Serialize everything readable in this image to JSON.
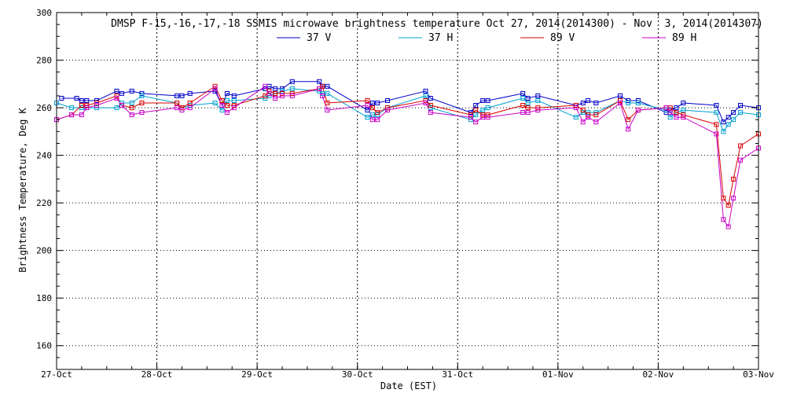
{
  "chart_data": {
    "type": "line",
    "title": "DMSP F-15,-16,-17,-18 SSMIS microwave brightness temperature Oct 27, 2014(2014300) - Nov  3, 2014(2014307)",
    "xlabel": "Date (EST)",
    "ylabel": "Brightness Temperature, Deg K",
    "xlim": [
      0,
      7
    ],
    "ylim": [
      150,
      300
    ],
    "yticks": [
      160,
      180,
      200,
      220,
      240,
      260,
      280,
      300
    ],
    "xtick_labels": [
      "27-Oct",
      "28-Oct",
      "29-Oct",
      "30-Oct",
      "31-Oct",
      "01-Nov",
      "02-Nov",
      "03-Nov"
    ],
    "grid": true,
    "legend_position": "top",
    "colors": {
      "37 V": "#0000c8",
      "37 H": "#00a0d0",
      "89 V": "#d80000",
      "89 H": "#c800c8",
      "grid": "#000000"
    },
    "series": [
      {
        "name": "37 V",
        "x": [
          0.05,
          0.2,
          0.25,
          0.3,
          0.4,
          0.6,
          0.65,
          0.75,
          0.85,
          1.2,
          1.25,
          1.33,
          1.58,
          1.65,
          1.7,
          1.77,
          2.08,
          2.12,
          2.18,
          2.25,
          2.35,
          2.62,
          2.65,
          2.7,
          3.1,
          3.15,
          3.2,
          3.3,
          3.68,
          3.73,
          4.13,
          4.18,
          4.25,
          4.3,
          4.65,
          4.7,
          4.8,
          5.18,
          5.25,
          5.3,
          5.38,
          5.62,
          5.7,
          5.8,
          6.08,
          6.12,
          6.18,
          6.25,
          6.58,
          6.65,
          6.7,
          6.75,
          6.82,
          7.0
        ],
        "values": [
          264,
          264,
          263,
          263,
          263,
          267,
          266,
          267,
          266,
          265,
          265,
          266,
          267,
          261,
          266,
          265,
          268,
          269,
          268,
          268,
          271,
          271,
          269,
          269,
          259,
          262,
          262,
          263,
          267,
          264,
          258,
          261,
          263,
          263,
          266,
          264,
          265,
          261,
          262,
          263,
          262,
          265,
          263,
          263,
          258,
          259,
          260,
          262,
          261,
          254,
          256,
          258,
          261,
          260
        ]
      },
      {
        "name": "37 H",
        "x": [
          0.0,
          0.15,
          0.25,
          0.3,
          0.4,
          0.6,
          0.65,
          0.75,
          0.85,
          1.2,
          1.25,
          1.33,
          1.58,
          1.65,
          1.7,
          1.77,
          2.08,
          2.12,
          2.18,
          2.25,
          2.35,
          2.62,
          2.65,
          2.7,
          3.1,
          3.15,
          3.2,
          3.3,
          3.68,
          3.73,
          4.13,
          4.18,
          4.25,
          4.3,
          4.65,
          4.7,
          4.8,
          5.18,
          5.25,
          5.3,
          5.38,
          5.62,
          5.7,
          5.8,
          6.08,
          6.12,
          6.18,
          6.25,
          6.58,
          6.65,
          6.7,
          6.75,
          6.82,
          7.0
        ],
        "values": [
          262,
          260,
          260,
          260,
          260,
          260,
          262,
          262,
          265,
          262,
          260,
          261,
          262,
          259,
          263,
          263,
          264,
          265,
          266,
          267,
          268,
          267,
          266,
          266,
          256,
          257,
          257,
          260,
          265,
          260,
          255,
          257,
          259,
          260,
          264,
          262,
          263,
          256,
          258,
          258,
          258,
          263,
          262,
          262,
          259,
          256,
          258,
          259,
          258,
          250,
          253,
          255,
          258,
          257
        ]
      },
      {
        "name": "89 V",
        "x": [
          0.0,
          0.15,
          0.25,
          0.3,
          0.4,
          0.6,
          0.65,
          0.75,
          0.85,
          1.2,
          1.25,
          1.33,
          1.58,
          1.65,
          1.7,
          1.77,
          2.08,
          2.12,
          2.18,
          2.25,
          2.35,
          2.62,
          2.65,
          2.7,
          3.1,
          3.15,
          3.2,
          3.3,
          3.68,
          3.73,
          4.13,
          4.18,
          4.25,
          4.3,
          4.65,
          4.7,
          4.8,
          5.18,
          5.25,
          5.3,
          5.38,
          5.62,
          5.7,
          5.8,
          6.08,
          6.12,
          6.18,
          6.25,
          6.58,
          6.65,
          6.7,
          6.75,
          6.82,
          7.0
        ],
        "values": [
          255,
          257,
          261,
          261,
          262,
          265,
          261,
          260,
          262,
          262,
          260,
          262,
          269,
          263,
          261,
          261,
          265,
          267,
          266,
          266,
          266,
          268,
          269,
          262,
          263,
          260,
          258,
          260,
          263,
          261,
          257,
          259,
          257,
          257,
          261,
          260,
          260,
          261,
          259,
          257,
          257,
          263,
          255,
          259,
          260,
          260,
          258,
          257,
          253,
          222,
          219,
          230,
          244,
          249
        ]
      },
      {
        "name": "89 H",
        "x": [
          0.0,
          0.15,
          0.25,
          0.3,
          0.4,
          0.6,
          0.65,
          0.75,
          0.85,
          1.2,
          1.25,
          1.33,
          1.58,
          1.65,
          1.7,
          1.77,
          2.08,
          2.12,
          2.18,
          2.25,
          2.35,
          2.62,
          2.65,
          2.7,
          3.1,
          3.15,
          3.2,
          3.3,
          3.68,
          3.73,
          4.13,
          4.18,
          4.25,
          4.3,
          4.65,
          4.7,
          4.8,
          5.18,
          5.25,
          5.3,
          5.38,
          5.62,
          5.7,
          5.8,
          6.08,
          6.12,
          6.18,
          6.25,
          6.58,
          6.65,
          6.7,
          6.75,
          6.82,
          7.0
        ],
        "values": [
          255,
          257,
          257,
          260,
          261,
          264,
          261,
          257,
          258,
          260,
          259,
          260,
          268,
          261,
          258,
          260,
          269,
          266,
          264,
          265,
          265,
          268,
          265,
          259,
          261,
          255,
          255,
          259,
          262,
          258,
          256,
          254,
          256,
          256,
          258,
          258,
          259,
          260,
          254,
          256,
          254,
          262,
          251,
          259,
          260,
          258,
          256,
          256,
          249,
          213,
          210,
          222,
          238,
          243
        ]
      }
    ]
  }
}
